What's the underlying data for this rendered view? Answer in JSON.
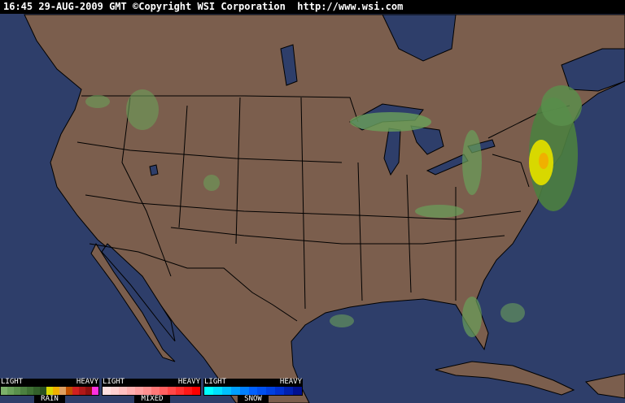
{
  "header": {
    "time": "16:45",
    "date": "29-AUG-2009",
    "zone": "GMT",
    "copyright": "©Copyright WSI Corporation",
    "url": "http://www.wsi.com"
  },
  "colors": {
    "ocean": "#2e3e6a",
    "land": "#7b5e4d",
    "borders": "#000000"
  },
  "legend": [
    {
      "name": "RAIN",
      "light": "LIGHT",
      "heavy": "HEAVY",
      "colors": [
        "#7cb06a",
        "#6aa05a",
        "#5a904c",
        "#4c8040",
        "#3f7034",
        "#33602a",
        "#285020",
        "#d8d800",
        "#f0b000",
        "#e0a060",
        "#c05000",
        "#d02020",
        "#b01818",
        "#901010",
        "#ff30e0"
      ]
    },
    {
      "name": "MIXED",
      "light": "LIGHT",
      "heavy": "HEAVY",
      "colors": [
        "#ffe0e0",
        "#ffd0d0",
        "#ffc0c0",
        "#ffb0b0",
        "#ffa0a0",
        "#ff9090",
        "#ff7878",
        "#ff6060",
        "#ff4848",
        "#ff3030",
        "#ff1818",
        "#ff0000"
      ]
    },
    {
      "name": "SNOW",
      "light": "LIGHT",
      "heavy": "HEAVY",
      "colors": [
        "#00ffff",
        "#00e0ff",
        "#00c0ff",
        "#00a0ff",
        "#0080ff",
        "#0060ff",
        "#0050f0",
        "#0040e0",
        "#0030d0",
        "#0020b0",
        "#001090"
      ]
    }
  ]
}
